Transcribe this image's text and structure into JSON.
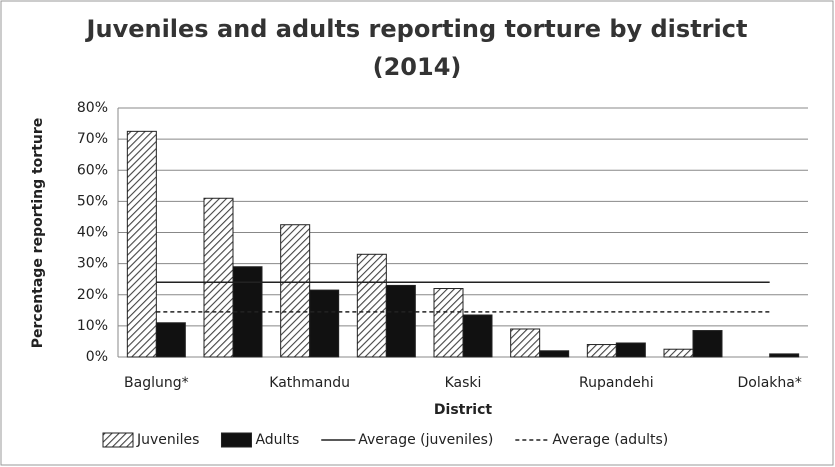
{
  "chart_data": {
    "type": "bar",
    "title": [
      "Juveniles and adults reporting torture by district",
      "(2014)"
    ],
    "x_label": "District",
    "y_label": "Percentage reporting  torture",
    "categories": [
      "Baglung*",
      null,
      "Kathmandu",
      null,
      "Kaski",
      null,
      "Rupandehi",
      null,
      "Dolakha*"
    ],
    "series": [
      {
        "name": "Juveniles",
        "color": "#555555",
        "pattern": "hatch",
        "values": [
          72.5,
          51,
          42.5,
          33,
          22,
          9,
          4,
          2.5,
          0
        ]
      },
      {
        "name": "Adults",
        "color": "#111111",
        "pattern": "solid",
        "values": [
          11,
          29,
          21.5,
          23,
          13.5,
          2,
          4.5,
          8.5,
          1
        ]
      }
    ],
    "reference_lines": [
      {
        "name": "Average (juveniles)",
        "value": 24,
        "style": "solid",
        "color": "#222222"
      },
      {
        "name": "Average (adults)",
        "value": 14.5,
        "style": "dashed",
        "color": "#222222"
      }
    ],
    "ylim": [
      0,
      80
    ],
    "yticks": [
      {
        "value": 0,
        "label": "0%"
      },
      {
        "value": 10,
        "label": "10%"
      },
      {
        "value": 20,
        "label": "20%"
      },
      {
        "value": 30,
        "label": "30%"
      },
      {
        "value": 40,
        "label": "40%"
      },
      {
        "value": 50,
        "label": "50%"
      },
      {
        "value": 60,
        "label": "60%"
      },
      {
        "value": 70,
        "label": "70%"
      },
      {
        "value": 80,
        "label": "80%"
      }
    ],
    "grid": true,
    "legend": "bottom"
  }
}
